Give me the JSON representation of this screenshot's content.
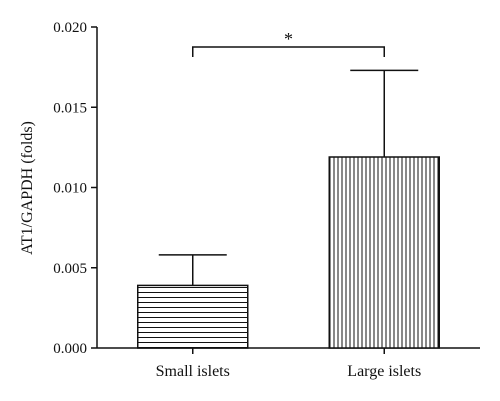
{
  "chart_data": {
    "type": "bar",
    "title": "",
    "xlabel": "",
    "ylabel": "AT1/GAPDH (folds)",
    "ylim": [
      0,
      0.02
    ],
    "yticks": [
      "0.000",
      "0.005",
      "0.010",
      "0.015",
      "0.020"
    ],
    "categories": [
      "Small islets",
      "Large islets"
    ],
    "values": [
      0.0039,
      0.0119
    ],
    "error_upper": [
      0.0019,
      0.0054
    ],
    "bar_patterns": [
      "horizontal-lines",
      "vertical-lines"
    ],
    "significance": {
      "between": [
        0,
        1
      ],
      "label": "*"
    },
    "grid": false,
    "colors": {
      "ink": "#111111",
      "background": "#ffffff"
    }
  }
}
